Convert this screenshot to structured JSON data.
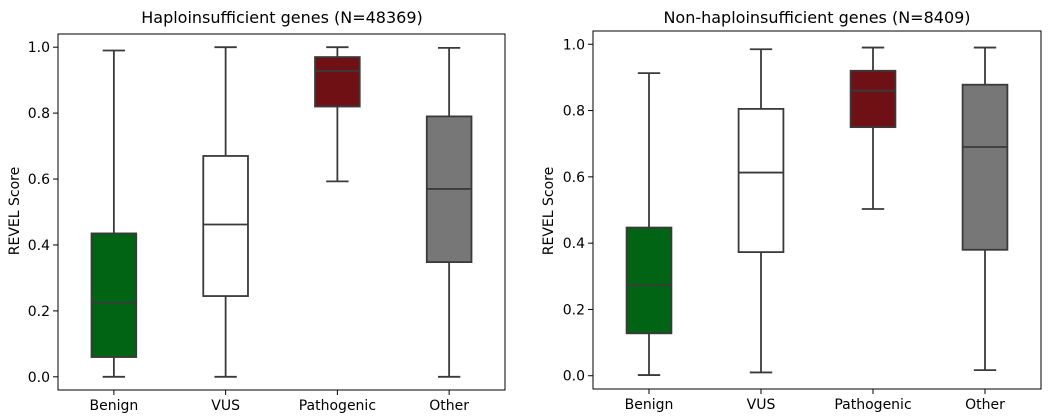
{
  "chart_data": [
    {
      "type": "box",
      "title": "Haploinsufficient genes (N=48369)",
      "xlabel": "",
      "ylabel": "REVEL Score",
      "categories": [
        "Benign",
        "VUS",
        "Pathogenic",
        "Other"
      ],
      "colors": [
        "#006414",
        "#ffffff",
        "#6e1014",
        "#777777"
      ],
      "yticks": [
        "0.0",
        "0.2",
        "0.4",
        "0.6",
        "0.8",
        "1.0"
      ],
      "ylim": [
        -0.04,
        1.04
      ],
      "grid": false,
      "boxes": [
        {
          "whisker_low": 0.0,
          "q1": 0.06,
          "median": 0.225,
          "q3": 0.435,
          "whisker_high": 0.99
        },
        {
          "whisker_low": 0.0,
          "q1": 0.245,
          "median": 0.462,
          "q3": 0.67,
          "whisker_high": 1.0
        },
        {
          "whisker_low": 0.593,
          "q1": 0.82,
          "median": 0.928,
          "q3": 0.97,
          "whisker_high": 1.0
        },
        {
          "whisker_low": 0.0,
          "q1": 0.348,
          "median": 0.57,
          "q3": 0.79,
          "whisker_high": 0.998
        }
      ]
    },
    {
      "type": "box",
      "title": "Non-haploinsufficient genes (N=8409)",
      "xlabel": "",
      "ylabel": "REVEL Score",
      "categories": [
        "Benign",
        "VUS",
        "Pathogenic",
        "Other"
      ],
      "colors": [
        "#006414",
        "#ffffff",
        "#6e1014",
        "#777777"
      ],
      "yticks": [
        "0.0",
        "0.2",
        "0.4",
        "0.6",
        "0.8",
        "1.0"
      ],
      "ylim": [
        -0.04,
        1.04
      ],
      "grid": false,
      "boxes": [
        {
          "whisker_low": 0.002,
          "q1": 0.128,
          "median": 0.273,
          "q3": 0.447,
          "whisker_high": 0.913
        },
        {
          "whisker_low": 0.01,
          "q1": 0.373,
          "median": 0.613,
          "q3": 0.805,
          "whisker_high": 0.985
        },
        {
          "whisker_low": 0.503,
          "q1": 0.75,
          "median": 0.86,
          "q3": 0.92,
          "whisker_high": 0.99
        },
        {
          "whisker_low": 0.017,
          "q1": 0.38,
          "median": 0.69,
          "q3": 0.878,
          "whisker_high": 0.99
        }
      ]
    }
  ]
}
